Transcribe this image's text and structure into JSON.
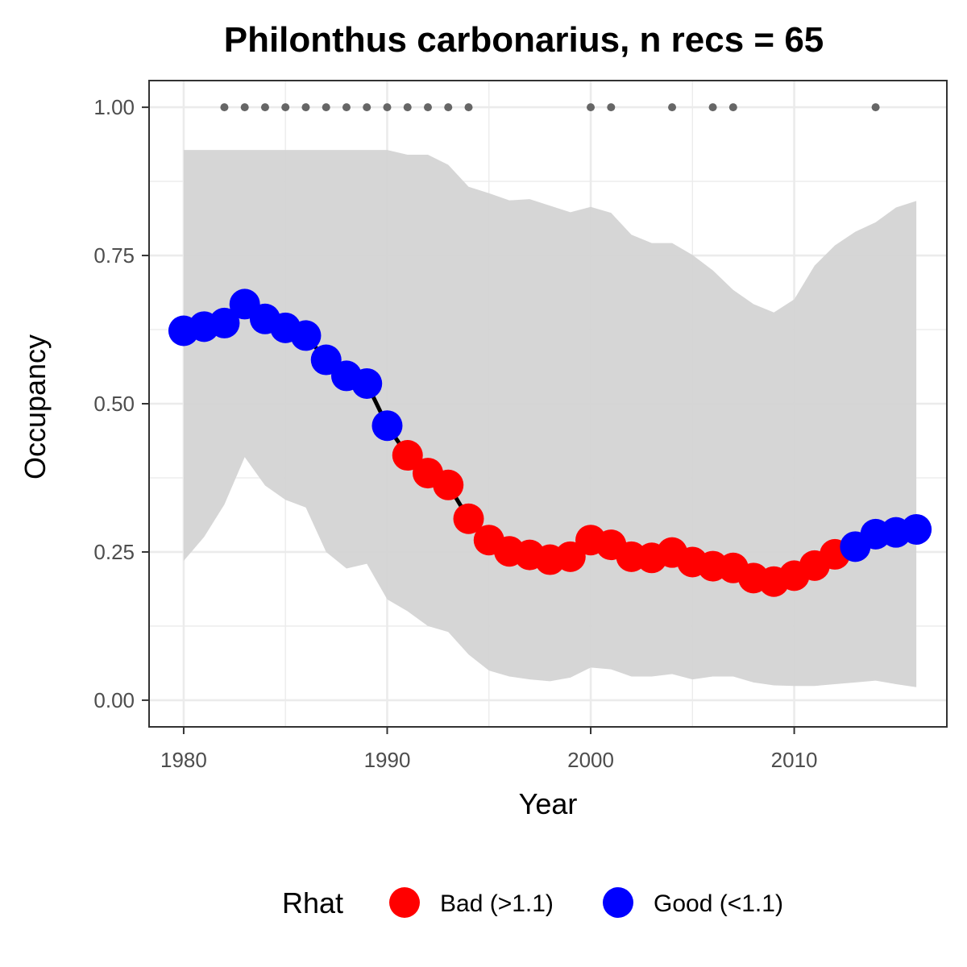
{
  "chart_data": {
    "type": "line",
    "title": "Philonthus carbonarius, n recs = 65",
    "xlabel": "Year",
    "ylabel": "Occupancy",
    "xlim": [
      1978.3,
      2017.5
    ],
    "ylim": [
      -0.045,
      1.045
    ],
    "x_ticks": [
      1980,
      1990,
      2000,
      2010
    ],
    "x_tick_labels": [
      "1980",
      "1990",
      "2000",
      "2010"
    ],
    "y_ticks": [
      0,
      0.25,
      0.5,
      0.75,
      1.0
    ],
    "y_tick_labels": [
      "0.00",
      "0.25",
      "0.50",
      "0.75",
      "1.00"
    ],
    "grid": true,
    "x": [
      1980,
      1981,
      1982,
      1983,
      1984,
      1985,
      1986,
      1987,
      1988,
      1989,
      1990,
      1991,
      1992,
      1993,
      1994,
      1995,
      1996,
      1997,
      1998,
      1999,
      2000,
      2001,
      2002,
      2003,
      2004,
      2005,
      2006,
      2007,
      2008,
      2009,
      2010,
      2011,
      2012,
      2013,
      2014,
      2015,
      2016
    ],
    "occupancy": [
      0.623,
      0.63,
      0.636,
      0.668,
      0.643,
      0.628,
      0.615,
      0.574,
      0.547,
      0.534,
      0.463,
      0.413,
      0.383,
      0.363,
      0.306,
      0.27,
      0.251,
      0.245,
      0.237,
      0.242,
      0.27,
      0.262,
      0.242,
      0.24,
      0.249,
      0.233,
      0.226,
      0.223,
      0.206,
      0.2,
      0.21,
      0.227,
      0.246,
      0.259,
      0.28,
      0.283,
      0.288
    ],
    "rhat": [
      "Good",
      "Good",
      "Good",
      "Good",
      "Good",
      "Good",
      "Good",
      "Good",
      "Good",
      "Good",
      "Good",
      "Bad",
      "Bad",
      "Bad",
      "Bad",
      "Bad",
      "Bad",
      "Bad",
      "Bad",
      "Bad",
      "Bad",
      "Bad",
      "Bad",
      "Bad",
      "Bad",
      "Bad",
      "Bad",
      "Bad",
      "Bad",
      "Bad",
      "Bad",
      "Bad",
      "Bad",
      "Good",
      "Good",
      "Good",
      "Good"
    ],
    "lower": [
      0.235,
      0.275,
      0.33,
      0.41,
      0.362,
      0.338,
      0.325,
      0.25,
      0.222,
      0.23,
      0.17,
      0.15,
      0.125,
      0.115,
      0.077,
      0.05,
      0.04,
      0.035,
      0.032,
      0.038,
      0.055,
      0.052,
      0.04,
      0.04,
      0.044,
      0.035,
      0.04,
      0.04,
      0.03,
      0.025,
      0.024,
      0.024,
      0.027,
      0.03,
      0.033,
      0.027,
      0.022
    ],
    "upper": [
      0.928,
      0.928,
      0.928,
      0.928,
      0.928,
      0.928,
      0.928,
      0.928,
      0.928,
      0.928,
      0.928,
      0.92,
      0.92,
      0.903,
      0.866,
      0.855,
      0.843,
      0.845,
      0.834,
      0.823,
      0.832,
      0.822,
      0.785,
      0.771,
      0.771,
      0.751,
      0.725,
      0.692,
      0.668,
      0.654,
      0.676,
      0.733,
      0.767,
      0.79,
      0.806,
      0.831,
      0.842
    ],
    "record_years": [
      1982,
      1983,
      1984,
      1985,
      1986,
      1987,
      1988,
      1989,
      1990,
      1991,
      1992,
      1993,
      1994,
      2000,
      2001,
      2004,
      2006,
      2007,
      2014
    ],
    "record_value": 1.0,
    "legend": {
      "title": "Rhat",
      "position": "bottom",
      "entries": [
        {
          "key": "Bad",
          "label": "Bad (>1.1)",
          "color": "#ff0000"
        },
        {
          "key": "Good",
          "label": "Good (<1.1)",
          "color": "#0000ff"
        }
      ]
    },
    "colors": {
      "ribbon": "#d3d3d3",
      "line": "#000000",
      "record_dot": "#666666",
      "panel_border": "#333333",
      "grid": "#ebebeb"
    }
  }
}
